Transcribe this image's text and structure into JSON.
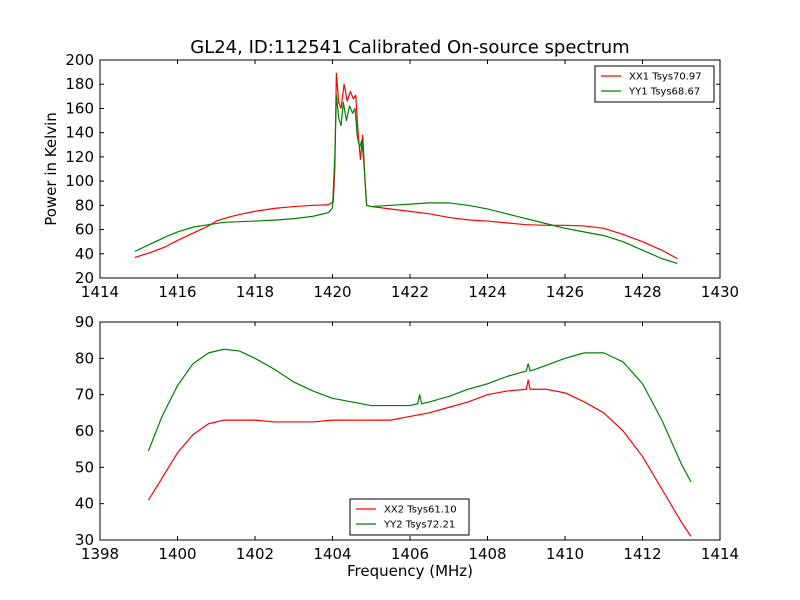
{
  "title": "GL24, ID:112541 Calibrated On-source spectrum",
  "chart_data": [
    {
      "type": "line",
      "ylabel": "Power in Kelvin",
      "xlabel": "",
      "xlim": [
        1414,
        1430
      ],
      "ylim": [
        20,
        200
      ],
      "xticks": [
        1414,
        1416,
        1418,
        1420,
        1422,
        1424,
        1426,
        1428,
        1430
      ],
      "yticks": [
        20,
        40,
        60,
        80,
        100,
        120,
        140,
        160,
        180,
        200
      ],
      "legend_position": "top-right",
      "series": [
        {
          "name": "XX1 Tsys70.97",
          "color": "#ff0000",
          "points": [
            [
              1414.9,
              37
            ],
            [
              1415.3,
              41
            ],
            [
              1415.7,
              46
            ],
            [
              1416.0,
              51
            ],
            [
              1416.4,
              57
            ],
            [
              1416.8,
              63
            ],
            [
              1417.0,
              67
            ],
            [
              1417.3,
              70
            ],
            [
              1417.6,
              72.5
            ],
            [
              1418.0,
              75
            ],
            [
              1418.5,
              77.5
            ],
            [
              1419.0,
              79
            ],
            [
              1419.5,
              80
            ],
            [
              1419.9,
              80.5
            ],
            [
              1420.02,
              83
            ],
            [
              1420.06,
              110
            ],
            [
              1420.1,
              189
            ],
            [
              1420.16,
              165
            ],
            [
              1420.22,
              160
            ],
            [
              1420.3,
              180
            ],
            [
              1420.38,
              166
            ],
            [
              1420.46,
              174
            ],
            [
              1420.54,
              168
            ],
            [
              1420.6,
              171
            ],
            [
              1420.66,
              140
            ],
            [
              1420.72,
              118
            ],
            [
              1420.78,
              138
            ],
            [
              1420.84,
              100
            ],
            [
              1420.88,
              80
            ],
            [
              1421.0,
              79
            ],
            [
              1421.5,
              77
            ],
            [
              1422.0,
              75
            ],
            [
              1422.5,
              73
            ],
            [
              1423.0,
              70
            ],
            [
              1423.5,
              68
            ],
            [
              1424.0,
              67
            ],
            [
              1424.5,
              65.5
            ],
            [
              1425.0,
              64
            ],
            [
              1425.5,
              63.5
            ],
            [
              1426.0,
              63.5
            ],
            [
              1426.5,
              63
            ],
            [
              1427.0,
              61
            ],
            [
              1427.5,
              56
            ],
            [
              1428.0,
              50
            ],
            [
              1428.5,
              43
            ],
            [
              1428.9,
              36
            ]
          ]
        },
        {
          "name": "YY1 Tsys68.67",
          "color": "#008000",
          "points": [
            [
              1414.9,
              42
            ],
            [
              1415.3,
              48
            ],
            [
              1415.7,
              54
            ],
            [
              1416.0,
              58
            ],
            [
              1416.4,
              62
            ],
            [
              1416.8,
              64
            ],
            [
              1417.2,
              66
            ],
            [
              1418.0,
              67
            ],
            [
              1418.6,
              68
            ],
            [
              1419.0,
              69
            ],
            [
              1419.5,
              71
            ],
            [
              1419.9,
              74
            ],
            [
              1420.0,
              78
            ],
            [
              1420.06,
              120
            ],
            [
              1420.1,
              171
            ],
            [
              1420.16,
              152
            ],
            [
              1420.22,
              146
            ],
            [
              1420.28,
              165
            ],
            [
              1420.36,
              150
            ],
            [
              1420.44,
              162
            ],
            [
              1420.52,
              156
            ],
            [
              1420.58,
              160
            ],
            [
              1420.64,
              137
            ],
            [
              1420.7,
              128
            ],
            [
              1420.76,
              134
            ],
            [
              1420.82,
              110
            ],
            [
              1420.88,
              80
            ],
            [
              1421.0,
              79
            ],
            [
              1421.5,
              80
            ],
            [
              1422.0,
              81
            ],
            [
              1422.5,
              82
            ],
            [
              1423.0,
              82
            ],
            [
              1423.5,
              80
            ],
            [
              1424.0,
              77
            ],
            [
              1424.5,
              73
            ],
            [
              1425.0,
              69
            ],
            [
              1425.5,
              65
            ],
            [
              1426.0,
              61
            ],
            [
              1426.5,
              58
            ],
            [
              1427.0,
              55
            ],
            [
              1427.5,
              50
            ],
            [
              1428.0,
              43
            ],
            [
              1428.5,
              36
            ],
            [
              1428.9,
              32
            ]
          ]
        }
      ]
    },
    {
      "type": "line",
      "xlabel": "Frequency (MHz)",
      "ylabel": "",
      "xlim": [
        1398,
        1414
      ],
      "ylim": [
        30,
        90
      ],
      "xticks": [
        1398,
        1400,
        1402,
        1404,
        1406,
        1408,
        1410,
        1412,
        1414
      ],
      "yticks": [
        30,
        40,
        50,
        60,
        70,
        80,
        90
      ],
      "legend_position": "bottom-center",
      "series": [
        {
          "name": "XX2 Tsys61.10",
          "color": "#ff0000",
          "points": [
            [
              1399.25,
              41
            ],
            [
              1399.6,
              47
            ],
            [
              1400.0,
              54
            ],
            [
              1400.4,
              59
            ],
            [
              1400.8,
              62
            ],
            [
              1401.2,
              63
            ],
            [
              1402.0,
              63
            ],
            [
              1402.5,
              62.5
            ],
            [
              1403.0,
              62.5
            ],
            [
              1403.5,
              62.5
            ],
            [
              1404.0,
              63
            ],
            [
              1404.5,
              63
            ],
            [
              1405.0,
              63
            ],
            [
              1405.5,
              63
            ],
            [
              1406.0,
              64
            ],
            [
              1406.5,
              65
            ],
            [
              1407.0,
              66.5
            ],
            [
              1407.5,
              68
            ],
            [
              1408.0,
              70
            ],
            [
              1408.5,
              71
            ],
            [
              1409.0,
              71.5
            ],
            [
              1409.05,
              74
            ],
            [
              1409.1,
              71.5
            ],
            [
              1409.5,
              71.5
            ],
            [
              1410.0,
              70.5
            ],
            [
              1410.5,
              68
            ],
            [
              1411.0,
              65
            ],
            [
              1411.5,
              60
            ],
            [
              1412.0,
              53
            ],
            [
              1412.5,
              44
            ],
            [
              1413.0,
              35
            ],
            [
              1413.25,
              31
            ]
          ]
        },
        {
          "name": "YY2 Tsys72.21",
          "color": "#008000",
          "points": [
            [
              1399.25,
              54.5
            ],
            [
              1399.6,
              64
            ],
            [
              1400.0,
              72.5
            ],
            [
              1400.4,
              78.5
            ],
            [
              1400.8,
              81.5
            ],
            [
              1401.2,
              82.5
            ],
            [
              1401.6,
              82
            ],
            [
              1402.0,
              80
            ],
            [
              1402.5,
              77
            ],
            [
              1403.0,
              73.5
            ],
            [
              1403.5,
              71
            ],
            [
              1404.0,
              69
            ],
            [
              1404.5,
              68
            ],
            [
              1405.0,
              67
            ],
            [
              1405.5,
              67
            ],
            [
              1406.0,
              67
            ],
            [
              1406.2,
              67.5
            ],
            [
              1406.25,
              70
            ],
            [
              1406.3,
              67.5
            ],
            [
              1406.5,
              68
            ],
            [
              1407.0,
              69.5
            ],
            [
              1407.5,
              71.5
            ],
            [
              1408.0,
              73
            ],
            [
              1408.5,
              75
            ],
            [
              1409.0,
              76.5
            ],
            [
              1409.05,
              78.5
            ],
            [
              1409.1,
              76.5
            ],
            [
              1409.5,
              78
            ],
            [
              1410.0,
              80
            ],
            [
              1410.5,
              81.5
            ],
            [
              1411.0,
              81.5
            ],
            [
              1411.5,
              79
            ],
            [
              1412.0,
              73
            ],
            [
              1412.5,
              63
            ],
            [
              1413.0,
              51
            ],
            [
              1413.25,
              46
            ]
          ]
        }
      ]
    }
  ]
}
